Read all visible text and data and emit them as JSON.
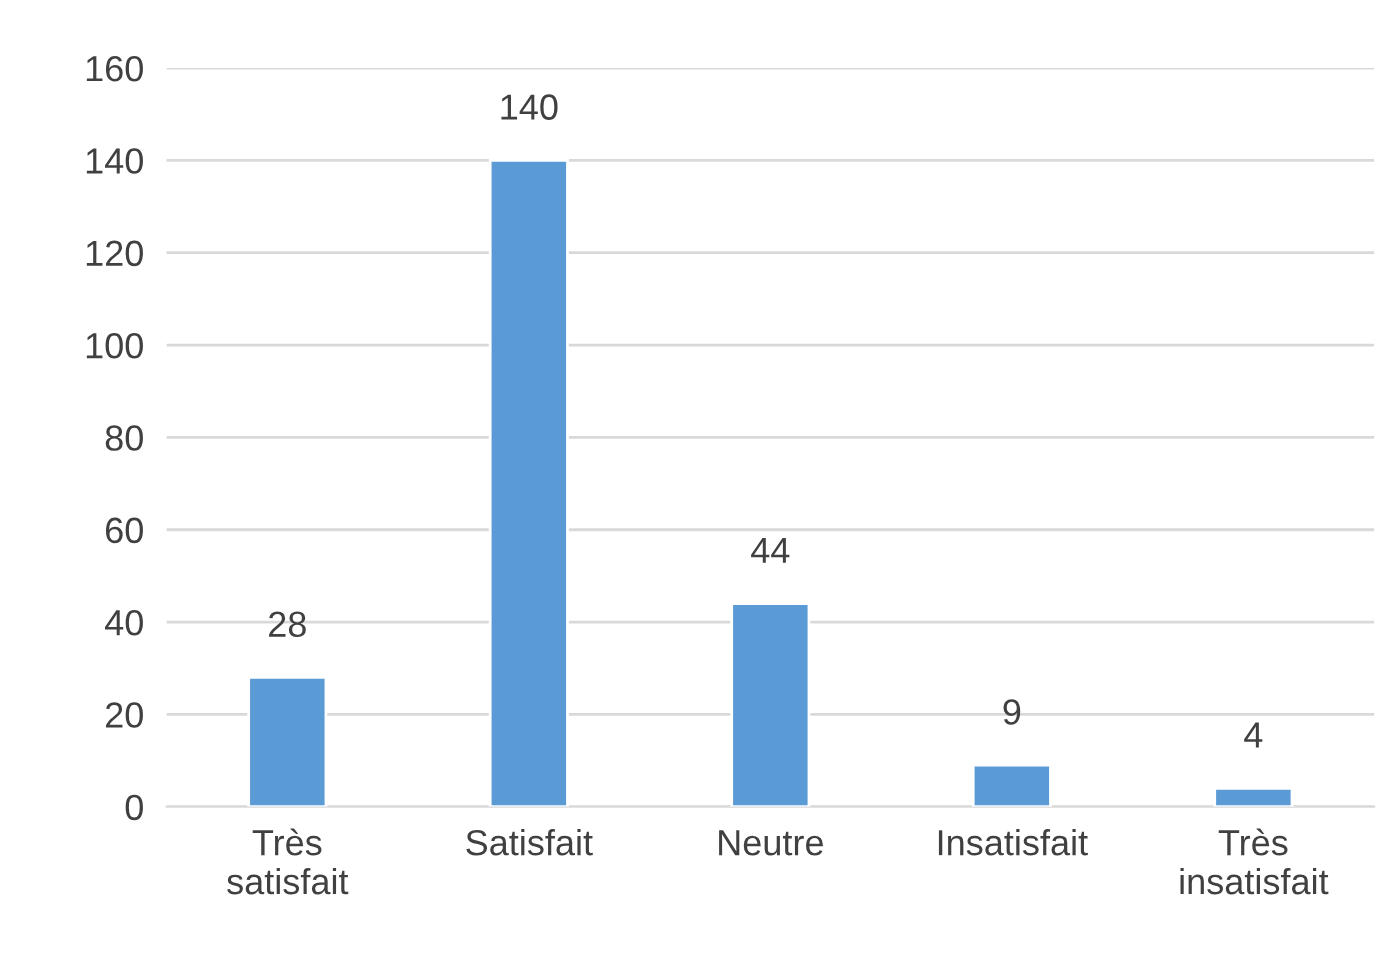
{
  "chart_data": {
    "type": "bar",
    "categories": [
      "Très satisfait",
      "Satisfait",
      "Neutre",
      "Insatisfait",
      "Très insatisfait"
    ],
    "values": [
      28,
      140,
      44,
      9,
      4
    ],
    "color": "#5b9bd5",
    "ylim": [
      0,
      160
    ],
    "yticks": [
      0,
      20,
      40,
      60,
      80,
      100,
      120,
      140,
      160
    ],
    "grid": "y",
    "data_labels": true,
    "legend": false
  }
}
